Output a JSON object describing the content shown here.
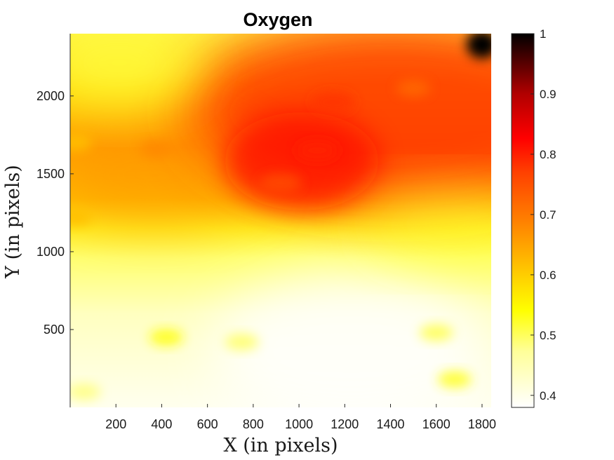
{
  "chart_data": {
    "type": "heatmap",
    "title": "Oxygen",
    "xlabel": "X (in pixels)",
    "ylabel": "Y (in pixels)",
    "xlim": [
      0,
      1840
    ],
    "ylim": [
      0,
      2400
    ],
    "x_ticks": [
      200,
      400,
      600,
      800,
      1000,
      1200,
      1400,
      1600,
      1800
    ],
    "x_tick_labels": [
      "200",
      "400",
      "600",
      "800",
      "1000",
      "1200",
      "1400",
      "1600",
      "1800"
    ],
    "y_ticks": [
      500,
      1000,
      1500,
      2000
    ],
    "y_tick_labels": [
      "500",
      "1000",
      "1500",
      "2000"
    ],
    "colormap": "hot (reversed)",
    "colorbar": {
      "range": [
        0.38,
        1.0
      ],
      "ticks": [
        0.4,
        0.5,
        0.6,
        0.7,
        0.8,
        0.9,
        1.0
      ],
      "tick_labels": [
        "0.4",
        "0.5",
        "0.6",
        "0.7",
        "0.8",
        "0.9",
        "1"
      ]
    },
    "grid": false,
    "hotspots": [
      {
        "x": 1800,
        "y": 2330,
        "value": 1.0
      },
      {
        "x": 1080,
        "y": 1650,
        "value": 0.8
      },
      {
        "x": 1150,
        "y": 1960,
        "value": 0.78
      },
      {
        "x": 920,
        "y": 1440,
        "value": 0.76
      },
      {
        "x": 1500,
        "y": 2050,
        "value": 0.72
      },
      {
        "x": 380,
        "y": 1660,
        "value": 0.68
      },
      {
        "x": 20,
        "y": 1700,
        "value": 0.62
      },
      {
        "x": 20,
        "y": 1220,
        "value": 0.62
      },
      {
        "x": 420,
        "y": 450,
        "value": 0.53
      },
      {
        "x": 1680,
        "y": 180,
        "value": 0.52
      },
      {
        "x": 1600,
        "y": 480,
        "value": 0.5
      },
      {
        "x": 60,
        "y": 100,
        "value": 0.48
      },
      {
        "x": 750,
        "y": 420,
        "value": 0.49
      }
    ]
  }
}
